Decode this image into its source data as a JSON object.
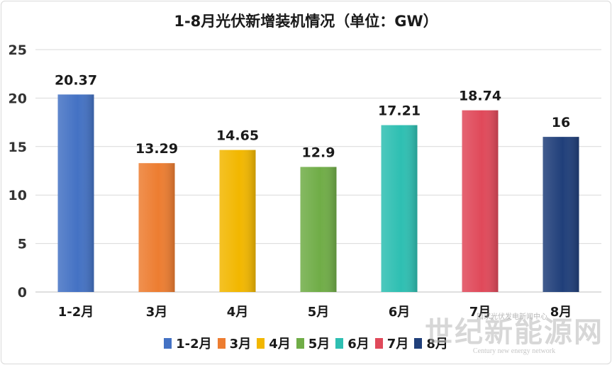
{
  "chart_data": {
    "type": "bar",
    "title": "1-8月光伏新增装机情况（单位：GW）",
    "categories": [
      "1-2月",
      "3月",
      "4月",
      "5月",
      "6月",
      "7月",
      "8月"
    ],
    "values": [
      20.37,
      13.29,
      14.65,
      12.9,
      17.21,
      18.74,
      16
    ],
    "data_labels": [
      "20.37",
      "13.29",
      "14.65",
      "12.9",
      "17.21",
      "18.74",
      "16"
    ],
    "colors": [
      "#4472C4",
      "#ED7D31",
      "#F2B700",
      "#70AD47",
      "#2EBFB2",
      "#E0495A",
      "#203F7A"
    ],
    "xlabel": "",
    "ylabel": "",
    "ylim": [
      0,
      25
    ],
    "yticks": [
      "0",
      "5",
      "10",
      "15",
      "20",
      "25"
    ],
    "grid": true,
    "legend": "bottom"
  },
  "watermark": {
    "main": "世纪新能源网",
    "sub": "Century new energy network",
    "small": "国家光伏发电新闻中心"
  }
}
